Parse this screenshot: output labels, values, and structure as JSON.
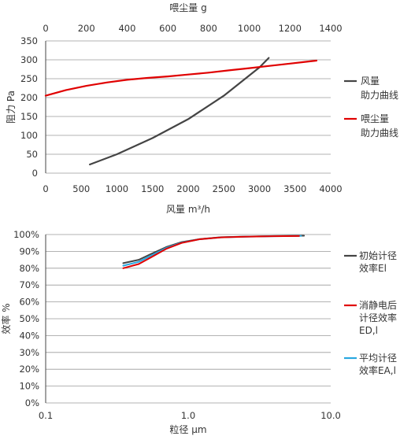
{
  "chart_data": [
    {
      "type": "line",
      "title": "",
      "xlabel": "风量 m³/h",
      "ylabel": "阻力 Pa",
      "x2label": "喂尘量 g",
      "xlim": [
        0,
        4000
      ],
      "x2lim": [
        0,
        1400
      ],
      "ylim": [
        0,
        350
      ],
      "x_ticks": [
        "0",
        "500",
        "1000",
        "1500",
        "2000",
        "2500",
        "3000",
        "3500",
        "4000"
      ],
      "x2_ticks": [
        "0",
        "200",
        "400",
        "600",
        "800",
        "1000",
        "1200",
        "1400"
      ],
      "y_ticks": [
        "0",
        "50",
        "100",
        "150",
        "200",
        "250",
        "300",
        "350"
      ],
      "grid": "horizontal",
      "legend_position": "right",
      "series": [
        {
          "name": "风量\n助力曲线",
          "axis": "x-bottom",
          "color": "#444444",
          "x": [
            620,
            1000,
            1500,
            2000,
            2500,
            3000,
            3130
          ],
          "y": [
            23,
            50,
            93,
            143,
            205,
            280,
            305
          ]
        },
        {
          "name": "喂尘量\n助力曲线",
          "axis": "x-top",
          "color": "#e00000",
          "x": [
            0,
            100,
            200,
            300,
            400,
            500,
            600,
            700,
            800,
            900,
            1000,
            1100,
            1200,
            1300,
            1330
          ],
          "y": [
            205,
            220,
            231,
            240,
            247,
            252,
            256,
            261,
            266,
            272,
            278,
            284,
            290,
            296,
            298
          ]
        }
      ]
    },
    {
      "type": "line",
      "title": "",
      "xlabel": "粒径 μm",
      "ylabel": "效率 %",
      "xscale": "log",
      "xlim": [
        0.1,
        10.0
      ],
      "ylim": [
        0,
        100
      ],
      "x_ticks": [
        "0.1",
        "1.0",
        "10.0"
      ],
      "y_ticks": [
        "0%",
        "10%",
        "20%",
        "30%",
        "40%",
        "50%",
        "60%",
        "70%",
        "80%",
        "90%",
        "100%"
      ],
      "grid": "horizontal",
      "legend_position": "right",
      "series": [
        {
          "name": "初始计径\n效率El",
          "color": "#444444",
          "x": [
            0.35,
            0.45,
            0.55,
            0.7,
            0.9,
            1.2,
            1.7,
            2.5,
            4.0,
            6.5
          ],
          "y": [
            83,
            85,
            88.5,
            92.5,
            95.5,
            97.3,
            98.4,
            98.8,
            99.1,
            99.3
          ]
        },
        {
          "name": "消静电后\n计径效率\nED,l",
          "color": "#e00000",
          "x": [
            0.35,
            0.45,
            0.55,
            0.7,
            0.9,
            1.2,
            1.7,
            2.5,
            4.0,
            6.0
          ],
          "y": [
            80,
            82.5,
            86.5,
            91.5,
            95,
            97.2,
            98.3,
            98.7,
            99,
            99.1
          ]
        },
        {
          "name": "平均计径\n效率EA,l",
          "color": "#29a8e0",
          "x": [
            0.35,
            0.45,
            0.55,
            0.7,
            0.9,
            1.2,
            1.7,
            2.5,
            4.0,
            6.2
          ],
          "y": [
            81.5,
            83.8,
            87.5,
            92,
            95.2,
            97.2,
            98.3,
            98.7,
            99,
            99.2
          ]
        }
      ]
    }
  ]
}
